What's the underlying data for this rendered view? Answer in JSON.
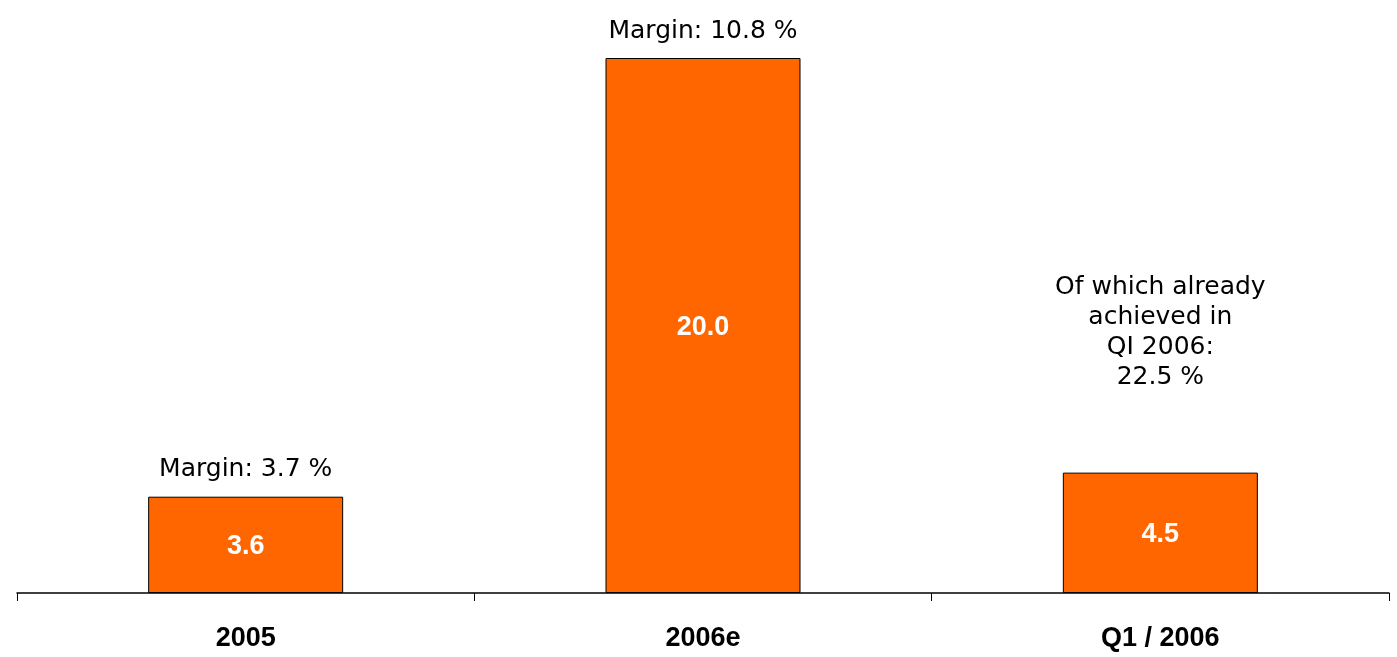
{
  "chart_data": {
    "type": "bar",
    "categories": [
      "2005",
      "2006e",
      "Q1 / 2006"
    ],
    "values": [
      3.6,
      20.0,
      4.5
    ],
    "color": "#ff6600",
    "value_labels": [
      "3.6",
      "20.0",
      "4.5"
    ],
    "annotations": [
      {
        "text": "Margin: 3.7 %",
        "x": "2005",
        "y": 3.6
      },
      {
        "text": "Margin: 10.8 %",
        "x": "2006e",
        "y": 20.0
      },
      "Of which already\nachieved in\nQI 2006:\n22.5 %"
    ]
  }
}
